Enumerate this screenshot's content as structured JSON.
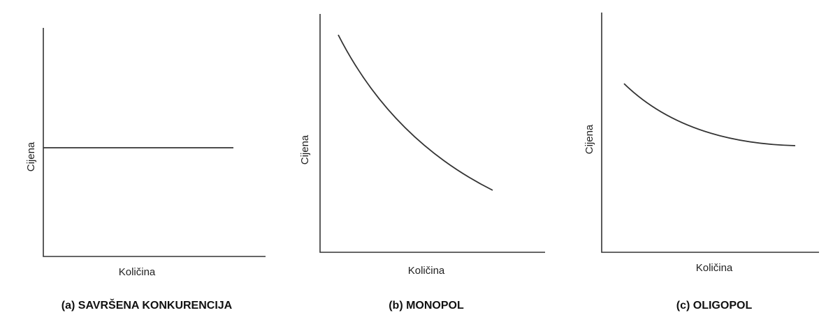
{
  "panels": [
    {
      "title": "(a) SAVRŠENA KONKURENCIJA",
      "xlabel": "Količina",
      "ylabel": "Cijena"
    },
    {
      "title": "(b) MONOPOL",
      "xlabel": "Količina",
      "ylabel": "Cijena"
    },
    {
      "title": "(c) OLIGOPOL",
      "xlabel": "Količina",
      "ylabel": "Cijena"
    }
  ]
}
